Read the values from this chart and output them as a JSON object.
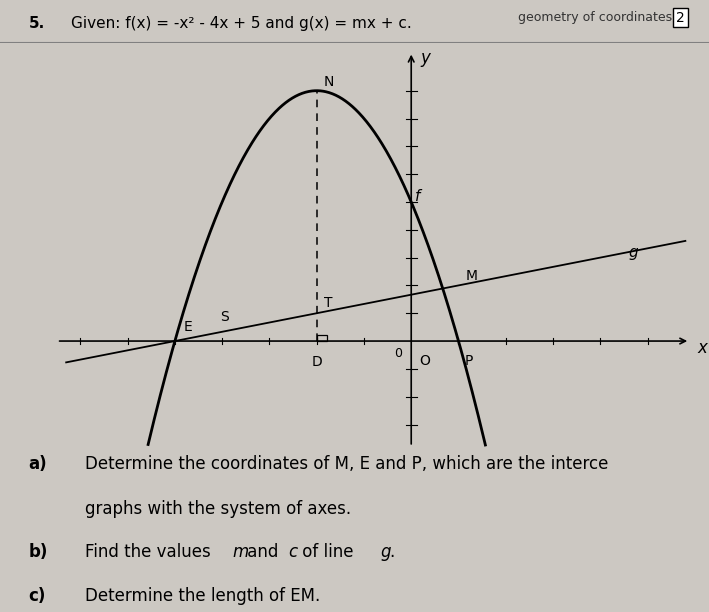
{
  "bg_color": "#ccc8c2",
  "header_text": "geometry of coordinates",
  "page_num": "2",
  "problem_label": "5.",
  "problem_text": "Given: f(x) = -x² - 4x + 5 and g(x) = mx + c.",
  "g_slope": 0.3333333333,
  "g_intercept": 1.6666666667,
  "xlim": [
    -7.5,
    6.0
  ],
  "ylim": [
    -3.8,
    10.5
  ],
  "x_ticks": [
    -7,
    -6,
    -5,
    -4,
    -3,
    -2,
    -1,
    1,
    2,
    3,
    4,
    5
  ],
  "y_ticks": [
    -3,
    -2,
    -1,
    1,
    2,
    3,
    4,
    5,
    6,
    7,
    8,
    9
  ],
  "points": {
    "M": [
      1,
      2
    ],
    "E": [
      -5,
      0
    ],
    "P": [
      1,
      0
    ],
    "N": [
      -2,
      9
    ],
    "D": [
      -2,
      0
    ],
    "T_x": -2,
    "S_x": -3.8,
    "O": [
      0,
      0
    ]
  },
  "label_fontsize": 10,
  "axis_label_fontsize": 12,
  "text_fontsize": 12,
  "lines": [
    {
      "label": "a)",
      "text": "Determine the coordinates of M, E and P, which are the interce",
      "bold": true
    },
    {
      "label": "",
      "text": "graphs with the system of axes.",
      "bold": false
    },
    {
      "label": "b)",
      "text_parts": [
        {
          "t": "Find the values ",
          "italic": false
        },
        {
          "t": "m",
          "italic": true
        },
        {
          "t": " and ",
          "italic": false
        },
        {
          "t": "c",
          "italic": true
        },
        {
          "t": " of line ",
          "italic": false
        },
        {
          "t": "g",
          "italic": true
        },
        {
          "t": ".",
          "italic": false
        }
      ],
      "bold": true
    },
    {
      "label": "c)",
      "text": "Determine the length of EM.",
      "bold": true
    }
  ]
}
